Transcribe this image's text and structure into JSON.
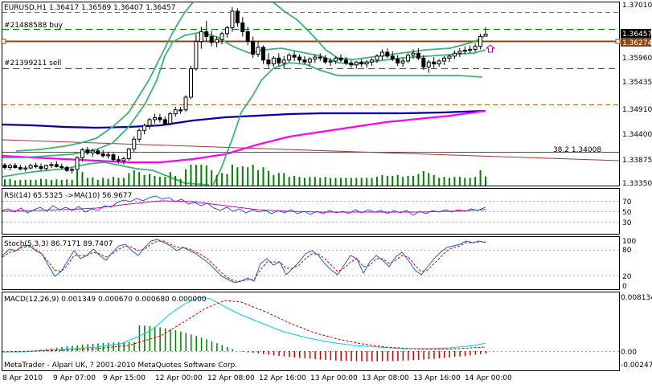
{
  "chart_data": [
    {
      "type": "candlestick",
      "title": "EURUSD,H1  1.36417 1.36589 1.36407 1.36457",
      "price_axis": [
        "1.37010",
        "1.36457",
        "1.36274",
        "1.35960",
        "1.35435",
        "1.34910",
        "1.34400",
        "1.33875",
        "1.33350"
      ],
      "ylim": [
        1.3335,
        1.371
      ],
      "current_price": "1.36457",
      "order_price": "1.36274",
      "order_labels": [
        "#21488588 buy",
        "#21399211 sell"
      ],
      "fib_label": "38.2  1.34008",
      "candles": [
        [
          1.3377,
          1.3381,
          1.3368,
          1.3372
        ],
        [
          1.3372,
          1.338,
          1.3366,
          1.3376
        ],
        [
          1.3376,
          1.3381,
          1.337,
          1.3372
        ],
        [
          1.3372,
          1.3378,
          1.3366,
          1.3369
        ],
        [
          1.3369,
          1.3376,
          1.3364,
          1.3371
        ],
        [
          1.3371,
          1.338,
          1.3368,
          1.3376
        ],
        [
          1.3376,
          1.3382,
          1.337,
          1.3374
        ],
        [
          1.3374,
          1.338,
          1.3366,
          1.337
        ],
        [
          1.337,
          1.3378,
          1.3365,
          1.3376
        ],
        [
          1.3376,
          1.3383,
          1.3371,
          1.3378
        ],
        [
          1.3378,
          1.3385,
          1.3372,
          1.3374
        ],
        [
          1.3374,
          1.338,
          1.3368,
          1.3372
        ],
        [
          1.3372,
          1.3376,
          1.3363,
          1.3366
        ],
        [
          1.3366,
          1.3372,
          1.336,
          1.3368
        ],
        [
          1.3368,
          1.3395,
          1.3364,
          1.3392
        ],
        [
          1.3392,
          1.3412,
          1.3384,
          1.3408
        ],
        [
          1.3408,
          1.3414,
          1.3398,
          1.3402
        ],
        [
          1.3402,
          1.3411,
          1.3394,
          1.3406
        ],
        [
          1.3406,
          1.341,
          1.3398,
          1.34
        ],
        [
          1.34,
          1.3408,
          1.3392,
          1.3396
        ],
        [
          1.3396,
          1.3404,
          1.339,
          1.3398
        ],
        [
          1.3398,
          1.3402,
          1.3384,
          1.3388
        ],
        [
          1.3388,
          1.3396,
          1.338,
          1.3386
        ],
        [
          1.3386,
          1.3394,
          1.3378,
          1.339
        ],
        [
          1.339,
          1.3412,
          1.3386,
          1.341
        ],
        [
          1.341,
          1.3436,
          1.3404,
          1.343
        ],
        [
          1.343,
          1.3452,
          1.3424,
          1.3448
        ],
        [
          1.3448,
          1.3462,
          1.344,
          1.3458
        ],
        [
          1.3458,
          1.3474,
          1.345,
          1.347
        ],
        [
          1.347,
          1.3482,
          1.3462,
          1.3474
        ],
        [
          1.3474,
          1.3482,
          1.3464,
          1.347
        ],
        [
          1.347,
          1.3476,
          1.3458,
          1.3462
        ],
        [
          1.3462,
          1.3486,
          1.3458,
          1.3482
        ],
        [
          1.3482,
          1.3496,
          1.3476,
          1.349
        ],
        [
          1.349,
          1.3496,
          1.3482,
          1.3488
        ],
        [
          1.349,
          1.352,
          1.3486,
          1.3516
        ],
        [
          1.3516,
          1.358,
          1.3512,
          1.3574
        ],
        [
          1.3574,
          1.3645,
          1.357,
          1.363
        ],
        [
          1.363,
          1.366,
          1.3615,
          1.365
        ],
        [
          1.365,
          1.3672,
          1.363,
          1.364
        ],
        [
          1.364,
          1.3652,
          1.362,
          1.3628
        ],
        [
          1.3628,
          1.364,
          1.3618,
          1.3634
        ],
        [
          1.3634,
          1.365,
          1.3624,
          1.3646
        ],
        [
          1.3646,
          1.3662,
          1.3638,
          1.3658
        ],
        [
          1.3658,
          1.37,
          1.365,
          1.3692
        ],
        [
          1.3692,
          1.3698,
          1.366,
          1.3668
        ],
        [
          1.3668,
          1.368,
          1.364,
          1.365
        ],
        [
          1.365,
          1.366,
          1.3622,
          1.363
        ],
        [
          1.363,
          1.364,
          1.3596,
          1.3604
        ],
        [
          1.3604,
          1.363,
          1.3598,
          1.3618
        ],
        [
          1.3618,
          1.3622,
          1.3584,
          1.3592
        ],
        [
          1.3592,
          1.3606,
          1.3576,
          1.3584
        ],
        [
          1.3584,
          1.36,
          1.3578,
          1.3596
        ],
        [
          1.3596,
          1.3606,
          1.358,
          1.3586
        ],
        [
          1.3586,
          1.36,
          1.3574,
          1.3592
        ],
        [
          1.3592,
          1.3606,
          1.3588,
          1.3602
        ],
        [
          1.3602,
          1.361,
          1.359,
          1.3598
        ],
        [
          1.3598,
          1.3604,
          1.3586,
          1.3592
        ],
        [
          1.3592,
          1.36,
          1.3584,
          1.3588
        ],
        [
          1.3588,
          1.3598,
          1.358,
          1.3594
        ],
        [
          1.3594,
          1.3604,
          1.3586,
          1.3598
        ],
        [
          1.3598,
          1.3606,
          1.359,
          1.3596
        ],
        [
          1.3596,
          1.3602,
          1.3584,
          1.3588
        ],
        [
          1.3588,
          1.3596,
          1.358,
          1.359
        ],
        [
          1.359,
          1.36,
          1.3584,
          1.3596
        ],
        [
          1.3596,
          1.3604,
          1.3588,
          1.3592
        ],
        [
          1.3592,
          1.3598,
          1.3582,
          1.3586
        ],
        [
          1.3586,
          1.3592,
          1.3576,
          1.3582
        ],
        [
          1.3582,
          1.359,
          1.3574,
          1.3588
        ],
        [
          1.3588,
          1.3594,
          1.3578,
          1.3584
        ],
        [
          1.3584,
          1.3592,
          1.3576,
          1.3588
        ],
        [
          1.3588,
          1.3596,
          1.358,
          1.3592
        ],
        [
          1.3592,
          1.3604,
          1.3586,
          1.36
        ],
        [
          1.36,
          1.3614,
          1.3592,
          1.3608
        ],
        [
          1.3608,
          1.3616,
          1.3596,
          1.36
        ],
        [
          1.36,
          1.361,
          1.359,
          1.3594
        ],
        [
          1.3594,
          1.3602,
          1.358,
          1.3586
        ],
        [
          1.3586,
          1.3596,
          1.3578,
          1.359
        ],
        [
          1.359,
          1.3606,
          1.3586,
          1.3602
        ],
        [
          1.3602,
          1.3614,
          1.3594,
          1.3606
        ],
        [
          1.3606,
          1.3616,
          1.3592,
          1.3596
        ],
        [
          1.3596,
          1.3602,
          1.3572,
          1.3578
        ],
        [
          1.3578,
          1.3592,
          1.3566,
          1.3588
        ],
        [
          1.3588,
          1.3598,
          1.3576,
          1.3584
        ],
        [
          1.3584,
          1.3594,
          1.3578,
          1.359
        ],
        [
          1.359,
          1.36,
          1.3582,
          1.3596
        ],
        [
          1.3596,
          1.3604,
          1.3588,
          1.36
        ],
        [
          1.36,
          1.3612,
          1.3594,
          1.3606
        ],
        [
          1.3606,
          1.3616,
          1.3598,
          1.361
        ],
        [
          1.361,
          1.362,
          1.3604,
          1.3612
        ],
        [
          1.3612,
          1.3622,
          1.3606,
          1.3614
        ],
        [
          1.3614,
          1.3626,
          1.3608,
          1.362
        ],
        [
          1.362,
          1.3646,
          1.3614,
          1.364
        ],
        [
          1.3641,
          1.3659,
          1.364,
          1.3645
        ]
      ],
      "indicators": {
        "rsi": {
          "label": "RSI(14) 65.5325  ->MA(10) 56.9677",
          "levels": [
            "70",
            "50",
            "30"
          ]
        },
        "stoch": {
          "label": "Stoch(5,3,3) 86.7171 89.7407",
          "levels": [
            "100",
            "80",
            "20",
            "0"
          ]
        },
        "macd": {
          "label": "MACD(12,26,9) 0.001349 0.000670 0.000680 0.000000",
          "levels": [
            "0.008134",
            "0.00",
            "-0.002477"
          ]
        }
      },
      "time_labels": [
        "8 Apr 2010",
        "9 Apr 07:00",
        "9 Apr 15:00",
        "12 Apr 00:00",
        "12 Apr 08:00",
        "12 Apr 16:00",
        "13 Apr 00:00",
        "13 Apr 08:00",
        "13 Apr 16:00",
        "14 Apr 00:00"
      ],
      "footer": "MetaTrader - Alpari UK, ? 2001-2010 MetaQuotes Software Corp."
    }
  ]
}
